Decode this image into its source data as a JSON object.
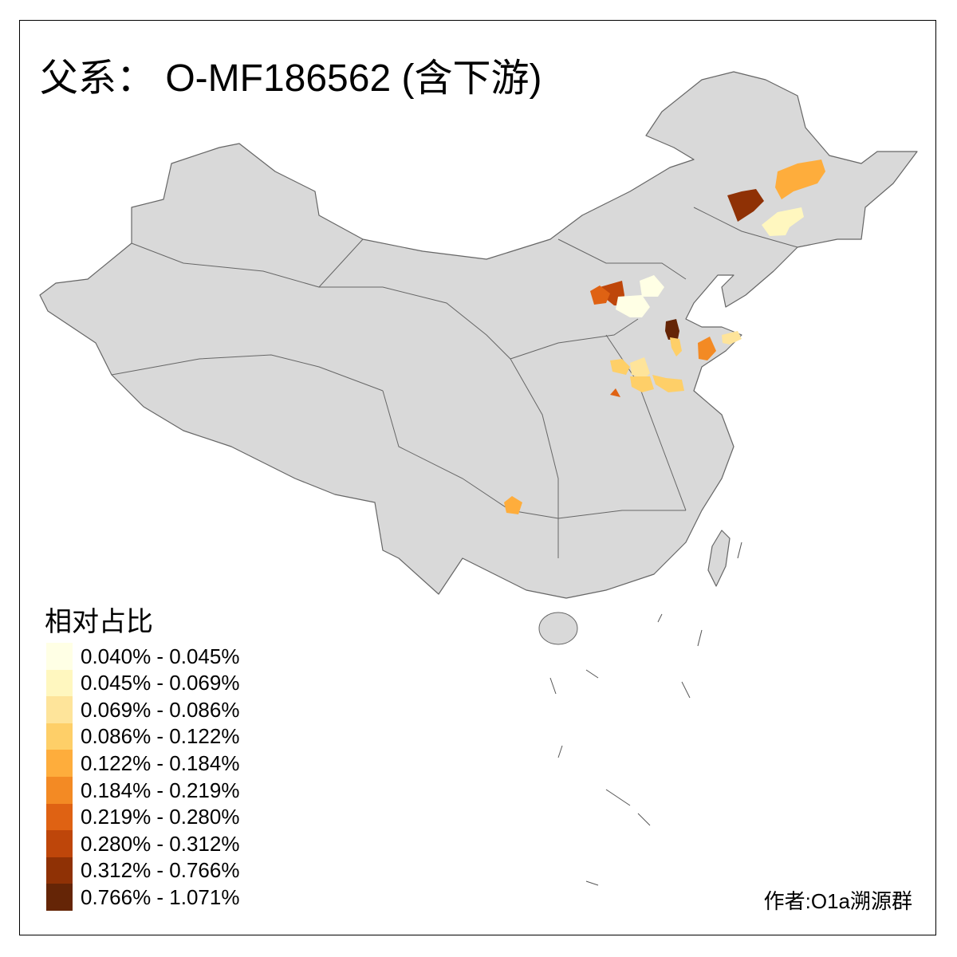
{
  "title": "父系： O-MF186562 (含下游)",
  "legend": {
    "title": "相对占比",
    "items": [
      {
        "label": "0.040% - 0.045%",
        "color": "#FFFFE5"
      },
      {
        "label": "0.045% - 0.069%",
        "color": "#FFF7BF"
      },
      {
        "label": "0.069% - 0.086%",
        "color": "#FEE49A"
      },
      {
        "label": "0.086% - 0.122%",
        "color": "#FECF68"
      },
      {
        "label": "0.122% - 0.184%",
        "color": "#FEAD3C"
      },
      {
        "label": "0.184% - 0.219%",
        "color": "#F38A24"
      },
      {
        "label": "0.219% - 0.280%",
        "color": "#DF6213"
      },
      {
        "label": "0.280% - 0.312%",
        "color": "#BE460A"
      },
      {
        "label": "0.312% - 0.766%",
        "color": "#8F3105"
      },
      {
        "label": "0.766% - 1.071%",
        "color": "#652506"
      }
    ]
  },
  "credit": "作者:O1a溯源群",
  "colors": {
    "base_fill": "#D9D9D9",
    "border": "#666666"
  }
}
